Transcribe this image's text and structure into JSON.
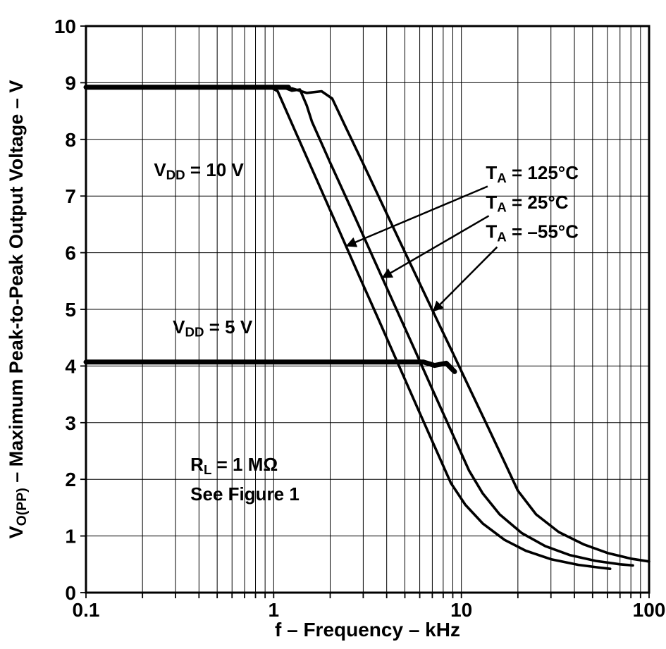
{
  "chart_data": {
    "type": "line",
    "x_axis": {
      "label": "f – Frequency – kHz",
      "scale": "log",
      "min": 0.1,
      "max": 100,
      "ticks": [
        0.1,
        1,
        10,
        100
      ],
      "tick_labels": [
        "0.1",
        "1",
        "10",
        "100"
      ]
    },
    "y_axis": {
      "label_segments": [
        {
          "t": "V"
        },
        {
          "t": "O(PP)",
          "sub": true
        },
        {
          "t": " – Maximum Peak-to-Peak Output Voltage – V"
        }
      ],
      "min": 0,
      "max": 10,
      "ticks": [
        0,
        1,
        2,
        3,
        4,
        5,
        6,
        7,
        8,
        9,
        10
      ]
    },
    "grid": true,
    "legend": "none",
    "series": [
      {
        "id": "vdd10-plateau",
        "name": "VDD = 10 V plateau (all temperatures)",
        "lw": 7,
        "points": [
          [
            0.1,
            8.92
          ],
          [
            1.2,
            8.92
          ]
        ]
      },
      {
        "id": "vdd5-plateau",
        "name": "VDD = 5 V plateau (all temperatures)",
        "lw": 7,
        "points": [
          [
            0.1,
            4.07
          ],
          [
            6.3,
            4.07
          ],
          [
            7.2,
            4.01
          ],
          [
            8.3,
            4.05
          ],
          [
            9.2,
            3.9
          ]
        ]
      },
      {
        "id": "ta-125c",
        "name": "TA = 125°C",
        "lw": 3.6,
        "points": [
          [
            0.1,
            8.93
          ],
          [
            0.95,
            8.93
          ],
          [
            1.05,
            8.85
          ],
          [
            1.3,
            8.15
          ],
          [
            1.7,
            7.28
          ],
          [
            2.2,
            6.44
          ],
          [
            2.8,
            5.65
          ],
          [
            3.6,
            4.84
          ],
          [
            4.6,
            4.04
          ],
          [
            5.8,
            3.28
          ],
          [
            7.2,
            2.58
          ],
          [
            8.8,
            1.93
          ],
          [
            10.5,
            1.55
          ],
          [
            13,
            1.22
          ],
          [
            17,
            0.93
          ],
          [
            22,
            0.74
          ],
          [
            30,
            0.59
          ],
          [
            42,
            0.49
          ],
          [
            55,
            0.44
          ],
          [
            62,
            0.42
          ]
        ]
      },
      {
        "id": "ta-25c",
        "name": "TA = 25°C",
        "lw": 3.6,
        "points": [
          [
            0.1,
            8.93
          ],
          [
            1.1,
            8.93
          ],
          [
            1.25,
            8.86
          ],
          [
            1.38,
            8.88
          ],
          [
            1.5,
            8.6
          ],
          [
            1.6,
            8.31
          ],
          [
            2,
            7.59
          ],
          [
            2.6,
            6.76
          ],
          [
            3.4,
            5.9
          ],
          [
            4.4,
            5.08
          ],
          [
            5.6,
            4.31
          ],
          [
            7,
            3.59
          ],
          [
            9,
            2.79
          ],
          [
            11,
            2.15
          ],
          [
            13,
            1.75
          ],
          [
            16,
            1.38
          ],
          [
            21,
            1.05
          ],
          [
            28,
            0.82
          ],
          [
            38,
            0.66
          ],
          [
            52,
            0.56
          ],
          [
            70,
            0.5
          ],
          [
            82,
            0.48
          ]
        ]
      },
      {
        "id": "ta-minus55c",
        "name": "TA = –55°C",
        "lw": 3.6,
        "points": [
          [
            0.1,
            8.9
          ],
          [
            1.25,
            8.9
          ],
          [
            1.5,
            8.82
          ],
          [
            1.8,
            8.85
          ],
          [
            2.05,
            8.72
          ],
          [
            2.4,
            8.24
          ],
          [
            3,
            7.57
          ],
          [
            4,
            6.69
          ],
          [
            5,
            6.01
          ],
          [
            6.3,
            5.31
          ],
          [
            7.6,
            4.74
          ],
          [
            9,
            4.23
          ],
          [
            11,
            3.62
          ],
          [
            14,
            2.89
          ],
          [
            17,
            2.3
          ],
          [
            20,
            1.8
          ],
          [
            25,
            1.38
          ],
          [
            33,
            1.07
          ],
          [
            45,
            0.85
          ],
          [
            60,
            0.7
          ],
          [
            80,
            0.6
          ],
          [
            100,
            0.55
          ]
        ]
      }
    ],
    "annotations": [
      {
        "id": "vdd-10v-label",
        "x": 0.23,
        "y": 7.35,
        "segments": [
          {
            "t": "V"
          },
          {
            "t": "DD",
            "sub": true
          },
          {
            "t": " = 10 V"
          }
        ]
      },
      {
        "id": "vdd-5v-label",
        "x": 0.29,
        "y": 4.58,
        "segments": [
          {
            "t": "V"
          },
          {
            "t": "DD",
            "sub": true
          },
          {
            "t": " = 5 V"
          }
        ]
      },
      {
        "id": "ta-125c-label",
        "x": 13.5,
        "y": 7.3,
        "segments": [
          {
            "t": "T"
          },
          {
            "t": "A",
            "sub": true
          },
          {
            "t": " = 125°C"
          }
        ]
      },
      {
        "id": "ta-25c-label",
        "x": 13.5,
        "y": 6.78,
        "segments": [
          {
            "t": "T"
          },
          {
            "t": "A",
            "sub": true
          },
          {
            "t": " = 25°C"
          }
        ]
      },
      {
        "id": "ta-minus55c-label",
        "x": 13.5,
        "y": 6.26,
        "segments": [
          {
            "t": "T"
          },
          {
            "t": "A",
            "sub": true
          },
          {
            "t": " = –55°C"
          }
        ]
      },
      {
        "id": "rl-label",
        "x": 0.36,
        "y": 2.15,
        "segments": [
          {
            "t": "R"
          },
          {
            "t": "L",
            "sub": true
          },
          {
            "t": " = 1 MΩ"
          }
        ]
      },
      {
        "id": "see-figure-label",
        "x": 0.36,
        "y": 1.63,
        "segments": [
          {
            "t": "See Figure 1"
          }
        ]
      }
    ],
    "arrows": [
      {
        "from": [
          13.8,
          7.17
        ],
        "to": [
          2.45,
          6.12
        ]
      },
      {
        "from": [
          14.0,
          6.65
        ],
        "to": [
          3.8,
          5.56
        ]
      },
      {
        "from": [
          15.5,
          6.1
        ],
        "to": [
          7.1,
          4.97
        ]
      }
    ],
    "colors": {
      "stroke": "#000000",
      "background": "#ffffff"
    }
  }
}
